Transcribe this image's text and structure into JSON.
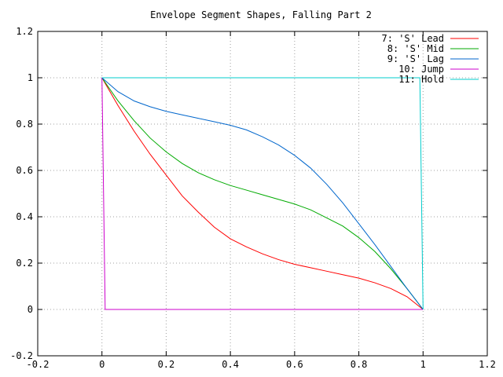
{
  "chart_data": {
    "type": "line",
    "title": "Envelope Segment Shapes, Falling Part 2",
    "xlabel": "",
    "ylabel": "",
    "xlim": [
      -0.2,
      1.2
    ],
    "ylim": [
      -0.2,
      1.2
    ],
    "x_ticks": [
      -0.2,
      0,
      0.2,
      0.4,
      0.6,
      0.8,
      1,
      1.2
    ],
    "y_ticks": [
      -0.2,
      0,
      0.2,
      0.4,
      0.6,
      0.8,
      1,
      1.2
    ],
    "x_tick_labels": [
      "-0.2",
      "0",
      "0.2",
      "0.4",
      "0.6",
      "0.8",
      "1",
      "1.2"
    ],
    "y_tick_labels": [
      "-0.2",
      "0",
      "0.2",
      "0.4",
      "0.6",
      "0.8",
      "1",
      "1.2"
    ],
    "grid": true,
    "legend_position": "top-right",
    "series": [
      {
        "name": "7: 'S' Lead",
        "color": "#ff0000",
        "points": [
          [
            0,
            1
          ],
          [
            0.05,
            0.88
          ],
          [
            0.1,
            0.77
          ],
          [
            0.15,
            0.67
          ],
          [
            0.2,
            0.58
          ],
          [
            0.25,
            0.49
          ],
          [
            0.3,
            0.42
          ],
          [
            0.35,
            0.355
          ],
          [
            0.4,
            0.305
          ],
          [
            0.45,
            0.27
          ],
          [
            0.5,
            0.24
          ],
          [
            0.55,
            0.215
          ],
          [
            0.6,
            0.195
          ],
          [
            0.65,
            0.18
          ],
          [
            0.7,
            0.165
          ],
          [
            0.75,
            0.15
          ],
          [
            0.8,
            0.135
          ],
          [
            0.85,
            0.115
          ],
          [
            0.9,
            0.09
          ],
          [
            0.95,
            0.055
          ],
          [
            1,
            0
          ]
        ]
      },
      {
        "name": "8: 'S' Mid",
        "color": "#00aa00",
        "points": [
          [
            0,
            1
          ],
          [
            0.05,
            0.9
          ],
          [
            0.1,
            0.815
          ],
          [
            0.15,
            0.74
          ],
          [
            0.2,
            0.68
          ],
          [
            0.25,
            0.63
          ],
          [
            0.3,
            0.59
          ],
          [
            0.35,
            0.56
          ],
          [
            0.4,
            0.535
          ],
          [
            0.45,
            0.515
          ],
          [
            0.5,
            0.495
          ],
          [
            0.55,
            0.475
          ],
          [
            0.6,
            0.455
          ],
          [
            0.65,
            0.43
          ],
          [
            0.7,
            0.395
          ],
          [
            0.75,
            0.36
          ],
          [
            0.8,
            0.31
          ],
          [
            0.85,
            0.25
          ],
          [
            0.9,
            0.175
          ],
          [
            0.95,
            0.09
          ],
          [
            1,
            0
          ]
        ]
      },
      {
        "name": "9: 'S' Lag",
        "color": "#0066cc",
        "points": [
          [
            0,
            1
          ],
          [
            0.05,
            0.94
          ],
          [
            0.1,
            0.9
          ],
          [
            0.15,
            0.875
          ],
          [
            0.2,
            0.855
          ],
          [
            0.25,
            0.84
          ],
          [
            0.3,
            0.825
          ],
          [
            0.35,
            0.81
          ],
          [
            0.4,
            0.795
          ],
          [
            0.45,
            0.775
          ],
          [
            0.5,
            0.745
          ],
          [
            0.55,
            0.71
          ],
          [
            0.6,
            0.665
          ],
          [
            0.65,
            0.61
          ],
          [
            0.7,
            0.54
          ],
          [
            0.75,
            0.46
          ],
          [
            0.8,
            0.37
          ],
          [
            0.85,
            0.28
          ],
          [
            0.9,
            0.185
          ],
          [
            0.95,
            0.09
          ],
          [
            1,
            0
          ]
        ]
      },
      {
        "name": "10: Jump",
        "color": "#cc00cc",
        "points": [
          [
            0,
            1
          ],
          [
            0.01,
            0
          ],
          [
            1,
            0
          ]
        ]
      },
      {
        "name": "11: Hold",
        "color": "#00cccc",
        "points": [
          [
            0,
            1
          ],
          [
            0.99,
            1
          ],
          [
            1,
            0
          ]
        ]
      }
    ]
  }
}
